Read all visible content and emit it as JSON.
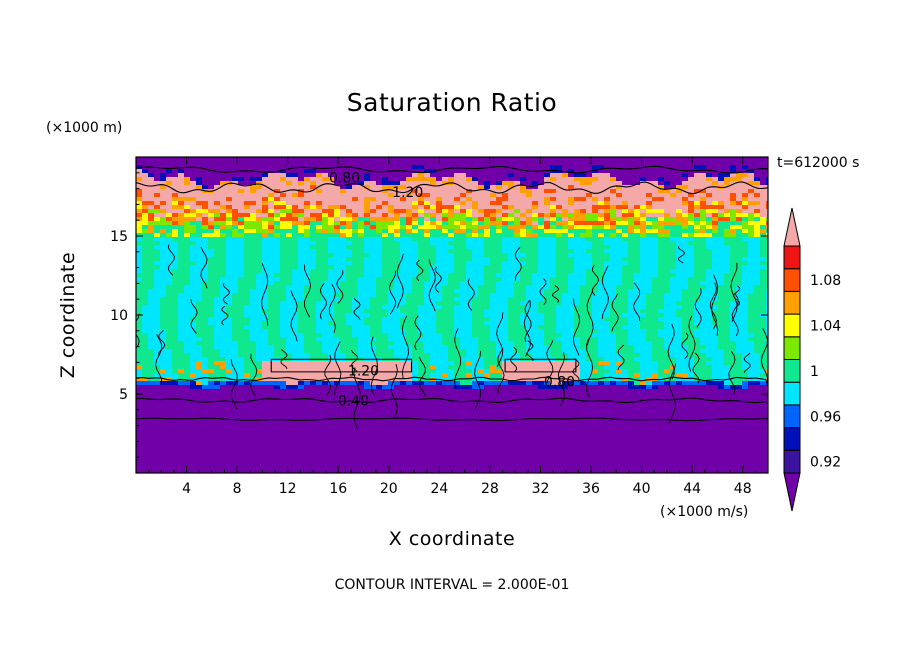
{
  "chart_data": {
    "type": "heatmap",
    "title": "Saturation Ratio",
    "xlabel": "X coordinate",
    "ylabel": "Z coordinate",
    "x_units": "(×1000 m/s)",
    "y_units": "(×1000 m)",
    "time_label": "t=612000 s",
    "contour_interval": "CONTOUR INTERVAL = 2.000E-01",
    "xlim": [
      0,
      50
    ],
    "ylim": [
      0,
      20
    ],
    "x_ticks": [
      4,
      8,
      12,
      16,
      20,
      24,
      28,
      32,
      36,
      40,
      44,
      48
    ],
    "y_ticks": [
      5,
      10,
      15
    ],
    "contour_labels": [
      {
        "text": "0.80",
        "x": 16.5,
        "z": 18.7
      },
      {
        "text": "1.20",
        "x": 21.5,
        "z": 17.8
      },
      {
        "text": "1.20",
        "x": 18.0,
        "z": 6.5
      },
      {
        "text": "0.80",
        "x": 33.5,
        "z": 5.8
      },
      {
        "text": "0.40",
        "x": 17.2,
        "z": 4.6
      }
    ],
    "colorbar": {
      "levels": [
        0.92,
        0.94,
        0.96,
        0.98,
        1.0,
        1.02,
        1.04,
        1.06,
        1.08,
        1.1
      ],
      "tick_labels": [
        "0.92",
        "0.96",
        "1",
        "1.04",
        "1.08"
      ],
      "colors": [
        "#7000a8",
        "#3c14a0",
        "#0010b8",
        "#0064ff",
        "#00e6ff",
        "#10e890",
        "#7ce800",
        "#ffff00",
        "#ffa000",
        "#ff5000",
        "#f01414",
        "#f5a8a8"
      ]
    }
  }
}
